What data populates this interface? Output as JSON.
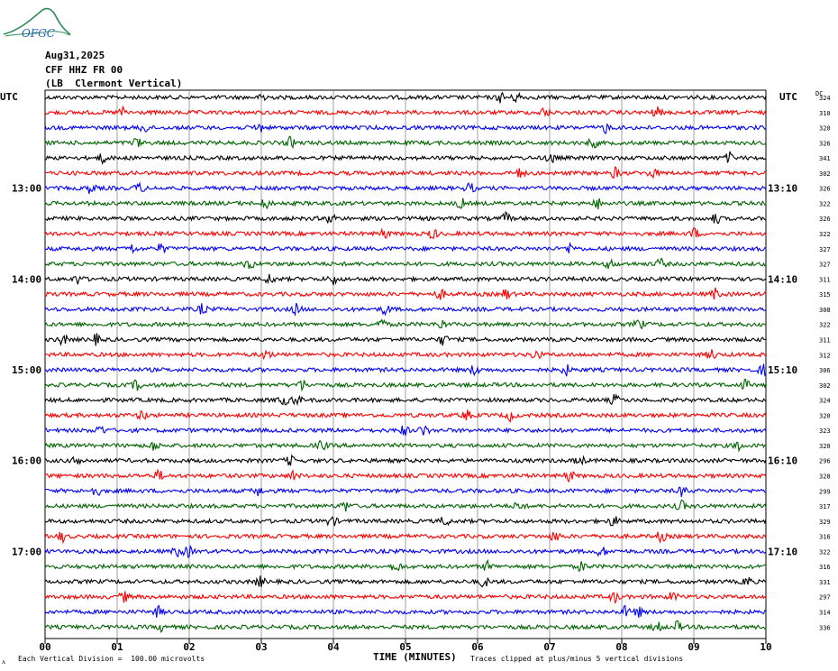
{
  "logo": {
    "text": "OFGC",
    "color": "#2e8b57",
    "text_color": "#1f5fbf"
  },
  "header": {
    "date": "Aug31,2025",
    "station": "CFF HHZ FR 00",
    "location": "(LB  Clermont Vertical)"
  },
  "chart_data": {
    "type": "line",
    "plot_kind": "helicorder",
    "left_axis_label": "UTC",
    "right_axis_label": "UTC",
    "dc_label": "DC",
    "x_label": "TIME (MINUTES)",
    "x_ticks": [
      "00",
      "01",
      "02",
      "03",
      "04",
      "05",
      "06",
      "07",
      "08",
      "09",
      "10"
    ],
    "xlim": [
      0,
      10
    ],
    "row_count": 36,
    "left_time_labels": [
      {
        "row": 6,
        "text": "13:00"
      },
      {
        "row": 12,
        "text": "14:00"
      },
      {
        "row": 18,
        "text": "15:00"
      },
      {
        "row": 24,
        "text": "16:00"
      },
      {
        "row": 30,
        "text": "17:00"
      }
    ],
    "right_time_labels": [
      {
        "row": 6,
        "text": "13:10"
      },
      {
        "row": 12,
        "text": "14:10"
      },
      {
        "row": 18,
        "text": "15:10"
      },
      {
        "row": 24,
        "text": "16:10"
      },
      {
        "row": 30,
        "text": "17:10"
      }
    ],
    "dc_offsets": [
      "324",
      "310",
      "320",
      "326",
      "341",
      "302",
      "326",
      "322",
      "326",
      "322",
      "327",
      "327",
      "311",
      "315",
      "308",
      "322",
      "311",
      "312",
      "306",
      "302",
      "324",
      "320",
      "323",
      "320",
      "296",
      "328",
      "299",
      "317",
      "329",
      "316",
      "322",
      "316",
      "331",
      "297",
      "314",
      "336"
    ],
    "trace_colors": [
      "#000000",
      "#ff0000",
      "#0000ff",
      "#006400"
    ],
    "grid": true
  },
  "footer": {
    "scale_note": "Each Vertical Division =  100.00 microvolts",
    "clip_note": "Traces clipped at plus/minus 5 vertical divisions",
    "corner_mark": "ᴧ"
  }
}
